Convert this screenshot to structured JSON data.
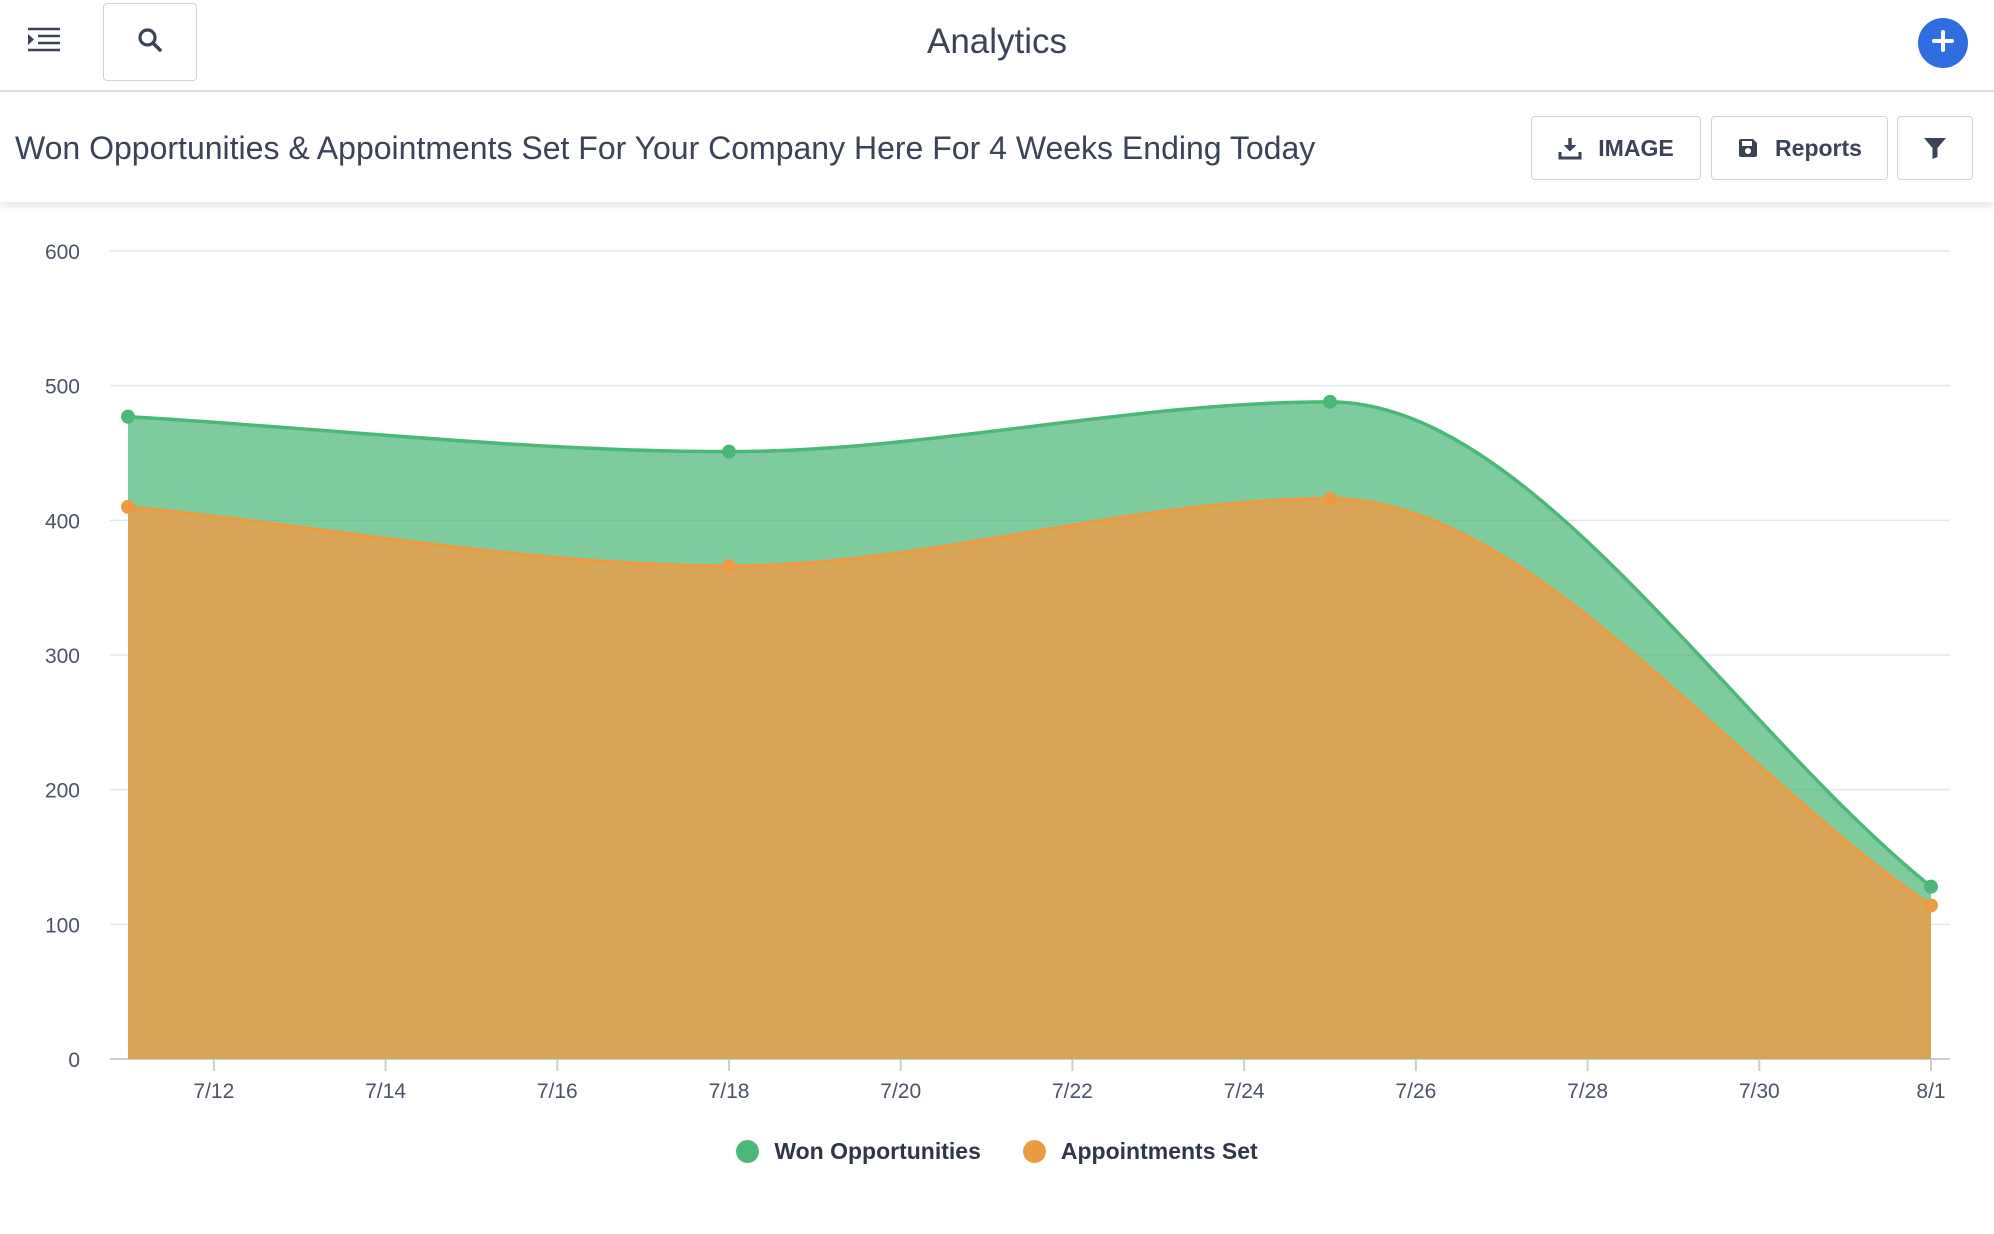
{
  "header": {
    "title": "Analytics"
  },
  "icons": {
    "menu": "menu-indent-icon",
    "search": "search-icon",
    "add": "plus-icon",
    "download": "download-icon",
    "save": "save-icon",
    "filter": "filter-icon"
  },
  "toolbar": {
    "report_title": "Won Opportunities & Appointments Set For Your Company Here For 4 Weeks Ending Today",
    "image_label": "IMAGE",
    "reports_label": "Reports"
  },
  "colors": {
    "accent": "#2d6de0",
    "won": "#4cb877",
    "appointments": "#ec9b45"
  },
  "chart_data": {
    "type": "area",
    "stacked": true,
    "x": [
      "7/11",
      "7/18",
      "7/25",
      "8/1"
    ],
    "x_ticks": [
      "7/12",
      "7/14",
      "7/16",
      "7/18",
      "7/20",
      "7/22",
      "7/24",
      "7/26",
      "7/28",
      "7/30",
      "8/1"
    ],
    "series": [
      {
        "name": "Won Opportunities",
        "total_values": [
          477,
          451,
          488,
          128
        ],
        "color": "#4cb877"
      },
      {
        "name": "Appointments Set",
        "values": [
          410,
          366,
          416,
          114
        ],
        "color": "#ec9b45"
      }
    ],
    "ylim": [
      0,
      600
    ],
    "y_ticks": [
      0,
      100,
      200,
      300,
      400,
      500,
      600
    ],
    "grid": true,
    "legend": "bottom-center"
  }
}
